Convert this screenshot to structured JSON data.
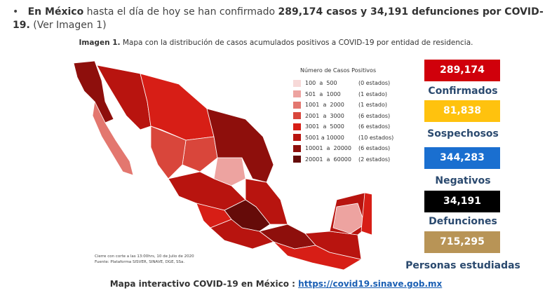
{
  "bullet": {
    "lead": "En México",
    "text": "hasta el día de hoy se han confirmado",
    "highlight": "289,174 casos y 34,191 defunciones por COVID-19.",
    "tail": "(Ver Imagen 1)"
  },
  "caption": {
    "label": "Imagen 1.",
    "text": "Mapa con la distribución de casos acumulados positivos a COVID-19 por entidad de residencia."
  },
  "legend": {
    "title": "Número de Casos Positivos",
    "items": [
      {
        "range": "100  a  500",
        "count": "(0 estados)",
        "color": "#f7d9d8"
      },
      {
        "range": "501  a  1000",
        "count": "(1 estado)",
        "color": "#eda3a0"
      },
      {
        "range": "1001  a  2000",
        "count": "(1 estado)",
        "color": "#e3776f"
      },
      {
        "range": "2001  a  3000",
        "count": "(6 estados)",
        "color": "#d9463b"
      },
      {
        "range": "3001  a  5000",
        "count": "(6 estados)",
        "color": "#d71e16"
      },
      {
        "range": "5001 a 10000",
        "count": "(10 estados)",
        "color": "#b8140f"
      },
      {
        "range": "10001  a  20000",
        "count": "(6 estados)",
        "color": "#8e0f0c"
      },
      {
        "range": "20001  a  60000",
        "count": "(2 estados)",
        "color": "#650b09"
      }
    ]
  },
  "note": {
    "line1": "Cierre con corte a las 13:00hrs, 10 de Julio de 2020",
    "line2": "Fuente: Plataforma SISVER, SINAVE, DGE, SSa."
  },
  "stats": [
    {
      "value": "289,174",
      "label": "Confirmados",
      "color": "#d0000b"
    },
    {
      "value": "81,838",
      "label": "Sospechosos",
      "color": "#ffc20e"
    },
    {
      "value": "344,283",
      "label": "Negativos",
      "color": "#1a6fd0"
    },
    {
      "value": "34,191",
      "label": "Defunciones",
      "color": "#000000"
    },
    {
      "value": "715,295",
      "label": "Personas estudiadas",
      "color": "#b89456"
    }
  ],
  "footer": {
    "text": "Mapa interactivo COVID-19 en México :",
    "link": "https://covid19.sinave.gob.mx"
  }
}
